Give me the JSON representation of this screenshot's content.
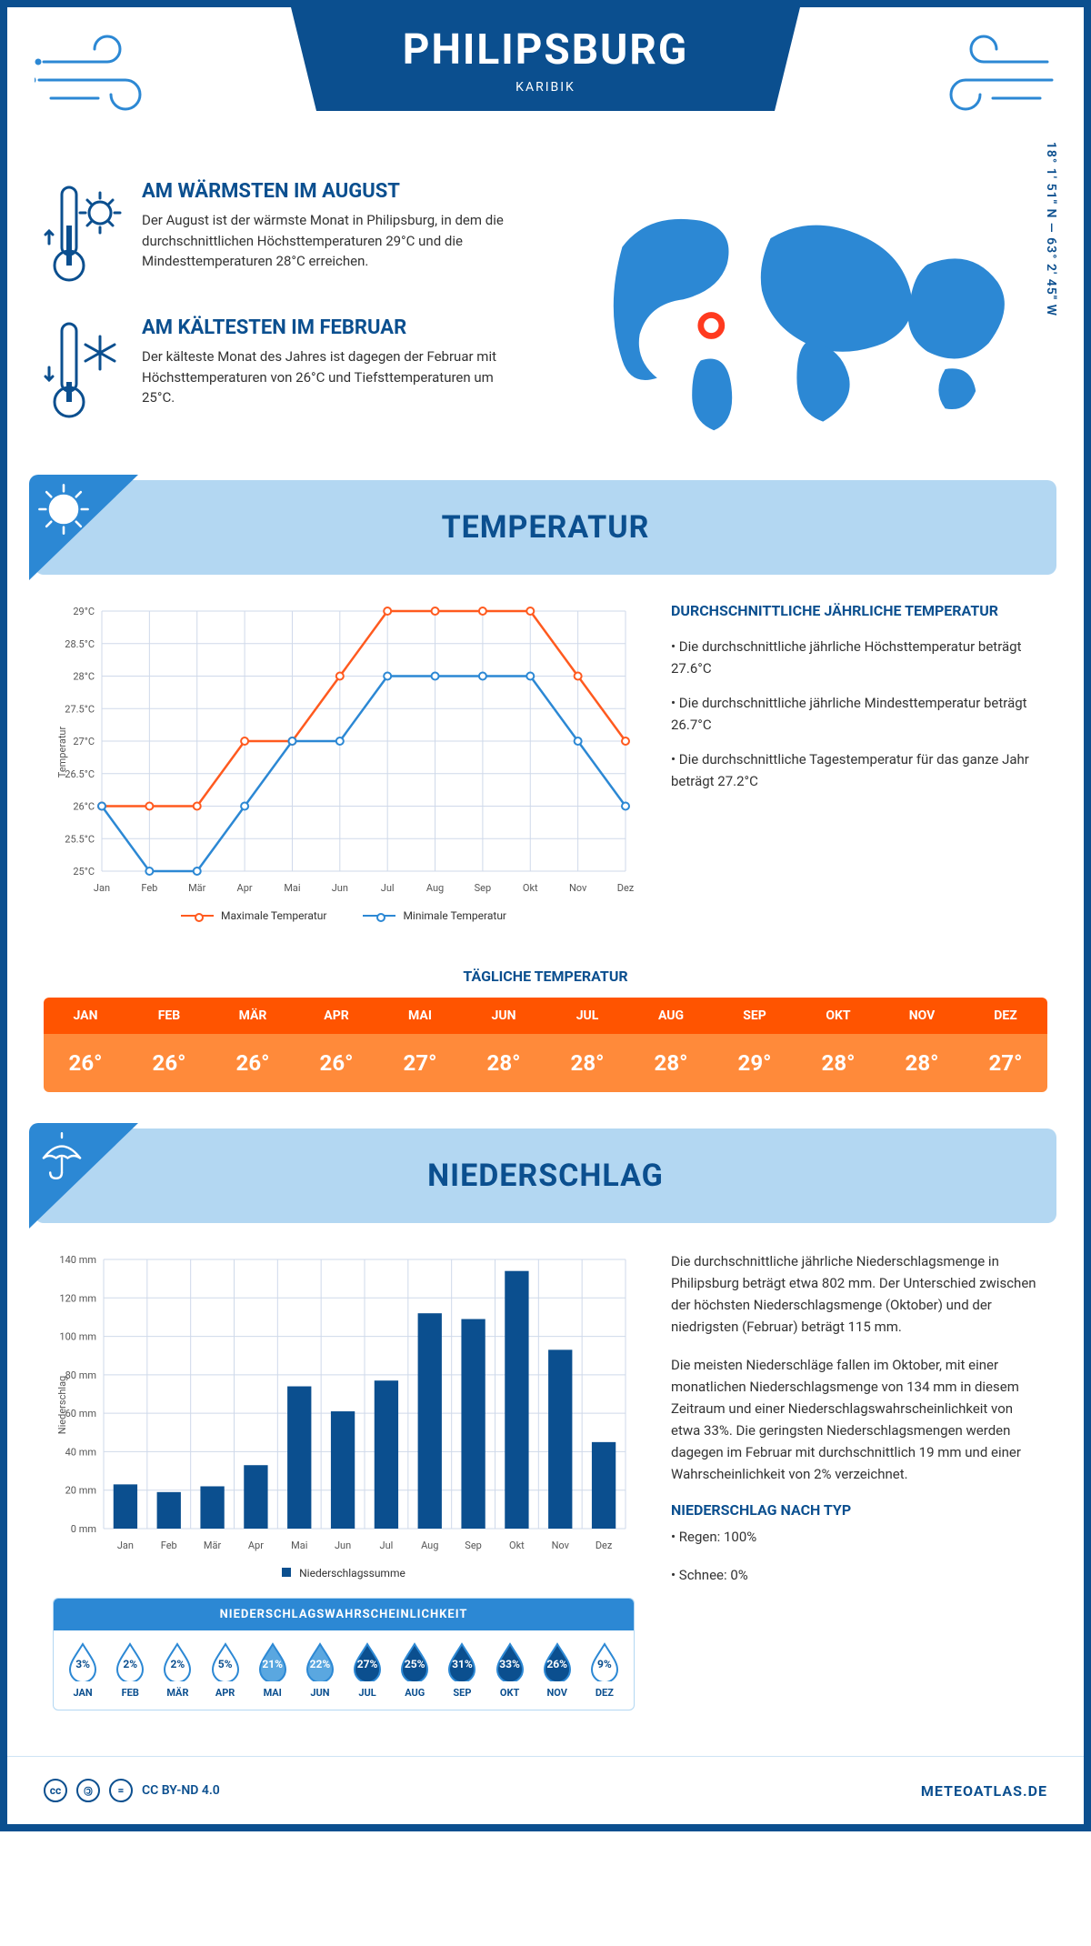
{
  "header": {
    "title": "PHILIPSBURG",
    "subtitle": "KARIBIK"
  },
  "coords": "18° 1' 51\" N — 63° 2' 45\" W",
  "colors": {
    "primary": "#0b4f8f",
    "accent": "#2c88d4",
    "light": "#b3d7f2",
    "orange_head": "#ff5400",
    "orange_body": "#ff8a3a",
    "max_line": "#ff5a1f",
    "min_line": "#2c88d4",
    "grid": "#cfd9ea",
    "bar": "#0b4f8f"
  },
  "months": [
    "Jan",
    "Feb",
    "Mär",
    "Apr",
    "Mai",
    "Jun",
    "Jul",
    "Aug",
    "Sep",
    "Okt",
    "Nov",
    "Dez"
  ],
  "months_upper": [
    "JAN",
    "FEB",
    "MÄR",
    "APR",
    "MAI",
    "JUN",
    "JUL",
    "AUG",
    "SEP",
    "OKT",
    "NOV",
    "DEZ"
  ],
  "facts": {
    "warm": {
      "title": "AM WÄRMSTEN IM AUGUST",
      "text": "Der August ist der wärmste Monat in Philipsburg, in dem die durchschnittlichen Höchsttemperaturen 29°C und die Mindesttemperaturen 28°C erreichen."
    },
    "cold": {
      "title": "AM KÄLTESTEN IM FEBRUAR",
      "text": "Der kälteste Monat des Jahres ist dagegen der Februar mit Höchsttemperaturen von 26°C und Tiefsttemperaturen um 25°C."
    }
  },
  "sections": {
    "temperature": "TEMPERATUR",
    "precipitation": "NIEDERSCHLAG"
  },
  "temp_chart": {
    "ylabel": "Temperatur",
    "ylim": [
      25,
      29
    ],
    "ytick_step": 0.5,
    "max": [
      26,
      26,
      26,
      27,
      27,
      28,
      29,
      29,
      29,
      29,
      28,
      27
    ],
    "min": [
      26,
      25,
      25,
      26,
      27,
      27,
      28,
      28,
      28,
      28,
      27,
      26
    ],
    "legend_max": "Maximale Temperatur",
    "legend_min": "Minimale Temperatur"
  },
  "temp_summary": {
    "title": "DURCHSCHNITTLICHE JÄHRLICHE TEMPERATUR",
    "b1": "• Die durchschnittliche jährliche Höchsttemperatur beträgt 27.6°C",
    "b2": "• Die durchschnittliche jährliche Mindesttemperatur beträgt 26.7°C",
    "b3": "• Die durchschnittliche Tagestemperatur für das ganze Jahr beträgt 27.2°C"
  },
  "daily": {
    "title": "TÄGLICHE TEMPERATUR",
    "values": [
      "26°",
      "26°",
      "26°",
      "26°",
      "27°",
      "28°",
      "28°",
      "28°",
      "29°",
      "28°",
      "28°",
      "27°"
    ]
  },
  "precip_chart": {
    "ylabel": "Niederschlag",
    "ylim": [
      0,
      140
    ],
    "ytick_step": 20,
    "values": [
      23,
      19,
      22,
      33,
      74,
      61,
      77,
      112,
      109,
      134,
      93,
      45
    ],
    "legend": "Niederschlagssumme"
  },
  "precip_text": {
    "p1": "Die durchschnittliche jährliche Niederschlagsmenge in Philipsburg beträgt etwa 802 mm. Der Unterschied zwischen der höchsten Niederschlagsmenge (Oktober) und der niedrigsten (Februar) beträgt 115 mm.",
    "p2": "Die meisten Niederschläge fallen im Oktober, mit einer monatlichen Niederschlagsmenge von 134 mm in diesem Zeitraum und einer Niederschlagswahrscheinlichkeit von etwa 33%. Die geringsten Niederschlagsmengen werden dagegen im Februar mit durchschnittlich 19 mm und einer Wahrscheinlichkeit von 2% verzeichnet.",
    "type_title": "NIEDERSCHLAG NACH TYP",
    "rain": "• Regen: 100%",
    "snow": "• Schnee: 0%"
  },
  "prob": {
    "title": "NIEDERSCHLAGSWAHRSCHEINLICHKEIT",
    "values": [
      3,
      2,
      2,
      5,
      21,
      22,
      27,
      25,
      31,
      33,
      26,
      9
    ],
    "fill_threshold_light": 15,
    "fill_threshold_mid": 25
  },
  "footer": {
    "license": "CC BY-ND 4.0",
    "brand": "METEOATLAS.DE"
  }
}
